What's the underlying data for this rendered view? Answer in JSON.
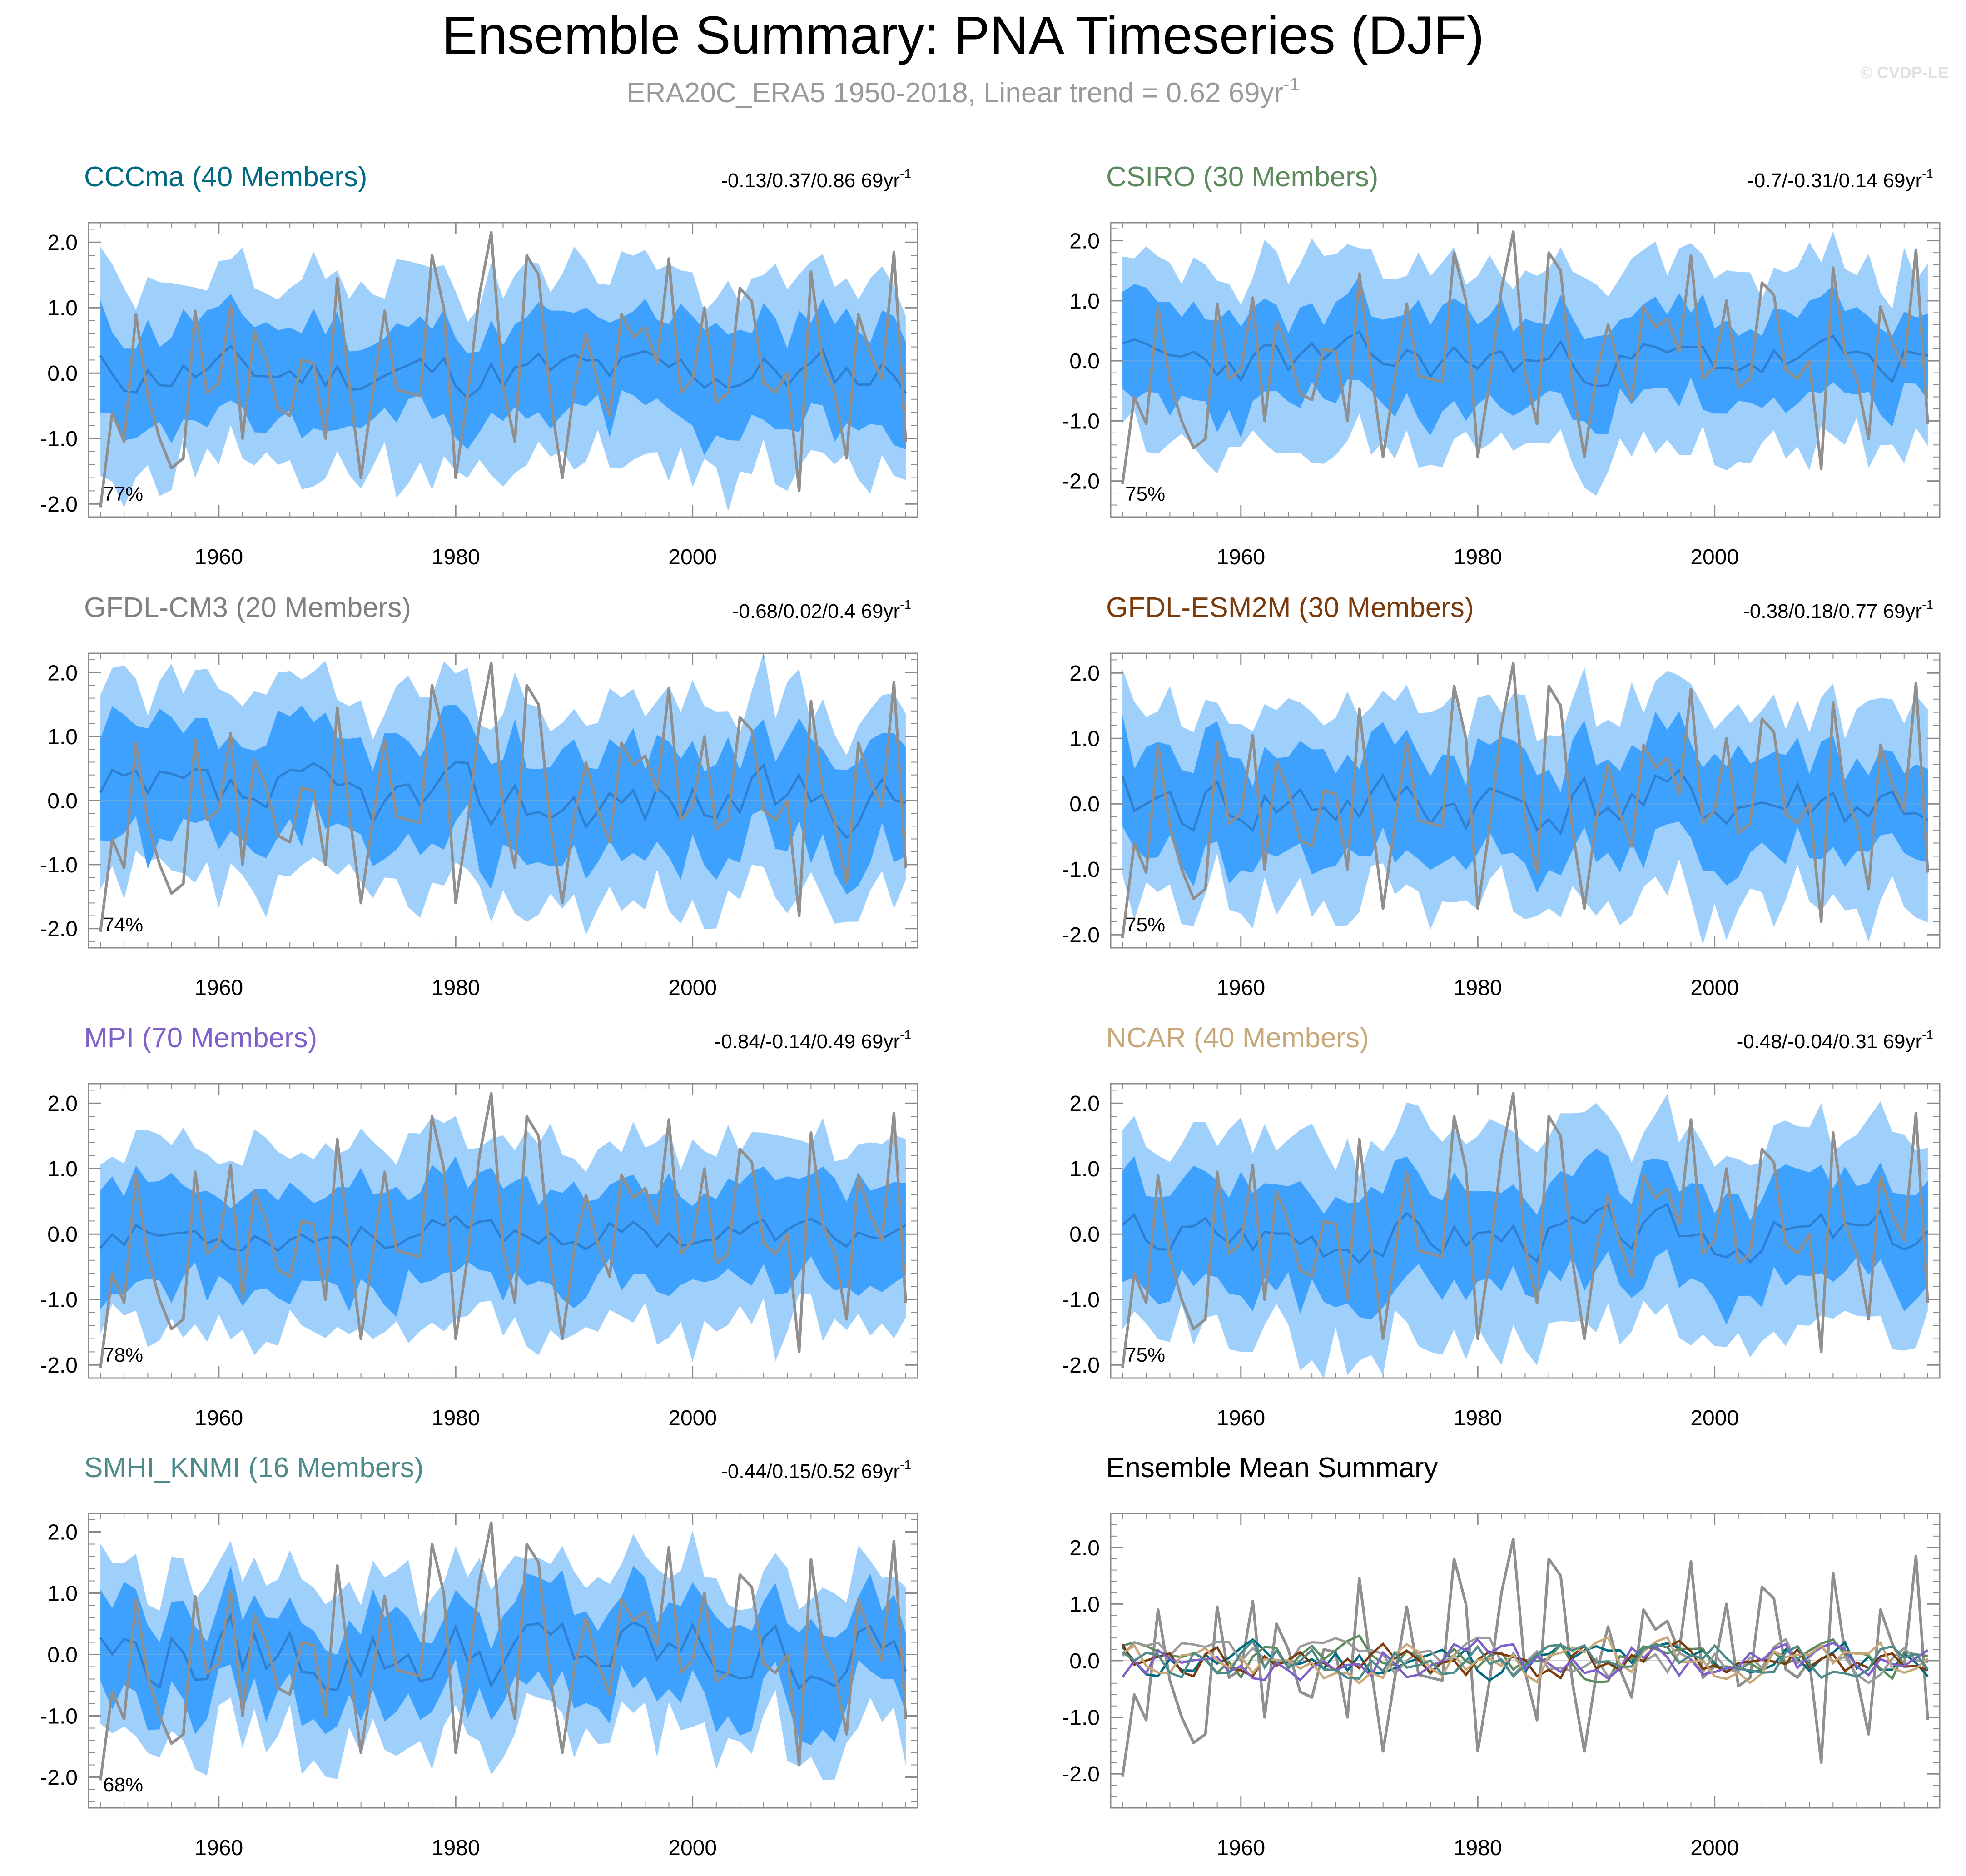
{
  "header": {
    "title": "Ensemble Summary: PNA Timeseries (DJF)",
    "subtitle_prefix": "ERA20C_ERA5 1950-2018, Linear trend = 0.62 69yr",
    "subtitle_sup": "-1",
    "watermark": "© CVDP-LE"
  },
  "colors": {
    "band_outer": "#9fcffb",
    "band_inner": "#3ea1fd",
    "ens_mean": "#2f7fd0",
    "observed": "#8f8f8f",
    "frame": "#8a8a8a"
  },
  "chart_data": [
    {
      "type": "line",
      "panel_id": "cccma",
      "title": "CCCma (40 Members)",
      "title_color": "#006a80",
      "trend_label": "-0.13/0.37/0.86 69yr",
      "trend_sup": "-1",
      "percent_label": "77%",
      "x_range": [
        1949,
        2019
      ],
      "ylim": [
        -2.2,
        2.3
      ],
      "yticks": [
        "2.0",
        "1.0",
        "0.0",
        "-1.0",
        "-2.0"
      ],
      "ytick_values": [
        2,
        1,
        0,
        -1,
        -2
      ],
      "xticks": [
        "1960",
        "1980",
        "2000"
      ],
      "xtick_values": [
        1960,
        1980,
        2000
      ],
      "seed": 11,
      "mean_amp": 0.15,
      "inner_width": 0.75,
      "outer_width": 1.45,
      "series": [
        "observed",
        "ensemble mean",
        "inner percentile band",
        "outer percentile band"
      ]
    },
    {
      "type": "line",
      "panel_id": "csiro",
      "title": "CSIRO (30 Members)",
      "title_color": "#5d8a5d",
      "trend_label": "-0.7/-0.31/0.14 69yr",
      "trend_sup": "-1",
      "percent_label": "75%",
      "x_range": [
        1949,
        2019
      ],
      "ylim": [
        -2.6,
        2.3
      ],
      "yticks": [
        "2.0",
        "1.0",
        "0.0",
        "-1.0",
        "-2.0"
      ],
      "ytick_values": [
        2,
        1,
        0,
        -1,
        -2
      ],
      "xticks": [
        "1960",
        "1980",
        "2000"
      ],
      "xtick_values": [
        1960,
        1980,
        2000
      ],
      "seed": 23,
      "mean_amp": 0.15,
      "inner_width": 0.75,
      "outer_width": 1.5,
      "series": [
        "observed",
        "ensemble mean",
        "inner percentile band",
        "outer percentile band"
      ]
    },
    {
      "type": "line",
      "panel_id": "gfdl_cm3",
      "title": "GFDL-CM3 (20 Members)",
      "title_color": "#808080",
      "trend_label": "-0.68/0.02/0.4 69yr",
      "trend_sup": "-1",
      "percent_label": "74%",
      "x_range": [
        1949,
        2019
      ],
      "ylim": [
        -2.3,
        2.3
      ],
      "yticks": [
        "2.0",
        "1.0",
        "0.0",
        "-1.0",
        "-2.0"
      ],
      "ytick_values": [
        2,
        1,
        0,
        -1,
        -2
      ],
      "xticks": [
        "1960",
        "1980",
        "2000"
      ],
      "xtick_values": [
        1960,
        1980,
        2000
      ],
      "seed": 37,
      "mean_amp": 0.2,
      "inner_width": 0.85,
      "outer_width": 1.5,
      "series": [
        "observed",
        "ensemble mean",
        "inner percentile band",
        "outer percentile band"
      ]
    },
    {
      "type": "line",
      "panel_id": "gfdl_esm2m",
      "title": "GFDL-ESM2M (30 Members)",
      "title_color": "#7a3a0c",
      "trend_label": "-0.38/0.18/0.77 69yr",
      "trend_sup": "-1",
      "percent_label": "75%",
      "x_range": [
        1949,
        2019
      ],
      "ylim": [
        -2.2,
        2.3
      ],
      "yticks": [
        "2.0",
        "1.0",
        "0.0",
        "-1.0",
        "-2.0"
      ],
      "ytick_values": [
        2,
        1,
        0,
        -1,
        -2
      ],
      "xticks": [
        "1960",
        "1980",
        "2000"
      ],
      "xtick_values": [
        1960,
        1980,
        2000
      ],
      "seed": 41,
      "mean_amp": 0.2,
      "inner_width": 0.8,
      "outer_width": 1.5,
      "series": [
        "observed",
        "ensemble mean",
        "inner percentile band",
        "outer percentile band"
      ]
    },
    {
      "type": "line",
      "panel_id": "mpi",
      "title": "MPI (70 Members)",
      "title_color": "#7f5fc8",
      "trend_label": "-0.84/-0.14/0.49 69yr",
      "trend_sup": "-1",
      "percent_label": "78%",
      "x_range": [
        1949,
        2019
      ],
      "ylim": [
        -2.2,
        2.3
      ],
      "yticks": [
        "2.0",
        "1.0",
        "0.0",
        "-1.0",
        "-2.0"
      ],
      "ytick_values": [
        2,
        1,
        0,
        -1,
        -2
      ],
      "xticks": [
        "1960",
        "1980",
        "2000"
      ],
      "xtick_values": [
        1960,
        1980,
        2000
      ],
      "seed": 53,
      "mean_amp": 0.1,
      "inner_width": 0.75,
      "outer_width": 1.4,
      "series": [
        "observed",
        "ensemble mean",
        "inner percentile band",
        "outer percentile band"
      ]
    },
    {
      "type": "line",
      "panel_id": "ncar",
      "title": "NCAR (40 Members)",
      "title_color": "#c8a878",
      "trend_label": "-0.48/-0.04/0.31 69yr",
      "trend_sup": "-1",
      "percent_label": "75%",
      "x_range": [
        1949,
        2019
      ],
      "ylim": [
        -2.2,
        2.3
      ],
      "yticks": [
        "2.0",
        "1.0",
        "0.0",
        "-1.0",
        "-2.0"
      ],
      "ytick_values": [
        2,
        1,
        0,
        -1,
        -2
      ],
      "xticks": [
        "1960",
        "1980",
        "2000"
      ],
      "xtick_values": [
        1960,
        1980,
        2000
      ],
      "seed": 67,
      "mean_amp": 0.15,
      "inner_width": 0.8,
      "outer_width": 1.5,
      "series": [
        "observed",
        "ensemble mean",
        "inner percentile band",
        "outer percentile band"
      ]
    },
    {
      "type": "line",
      "panel_id": "smhi_knmi",
      "title": "SMHI_KNMI (16 Members)",
      "title_color": "#4f8a8a",
      "trend_label": "-0.44/0.15/0.52 69yr",
      "trend_sup": "-1",
      "percent_label": "68%",
      "x_range": [
        1949,
        2019
      ],
      "ylim": [
        -2.5,
        2.3
      ],
      "yticks": [
        "2.0",
        "1.0",
        "0.0",
        "-1.0",
        "-2.0"
      ],
      "ytick_values": [
        2,
        1,
        0,
        -1,
        -2
      ],
      "xticks": [
        "1960",
        "1980",
        "2000"
      ],
      "xtick_values": [
        1960,
        1980,
        2000
      ],
      "seed": 79,
      "mean_amp": 0.25,
      "inner_width": 0.75,
      "outer_width": 1.3,
      "series": [
        "observed",
        "ensemble mean",
        "inner percentile band",
        "outer percentile band"
      ]
    },
    {
      "type": "line",
      "panel_id": "ensemble_mean_summary",
      "title": "Ensemble Mean Summary",
      "title_color": "#000000",
      "trend_label": "",
      "trend_sup": "",
      "percent_label": "",
      "x_range": [
        1949,
        2019
      ],
      "ylim": [
        -2.6,
        2.6
      ],
      "yticks": [
        "2.0",
        "1.0",
        "0.0",
        "-1.0",
        "-2.0"
      ],
      "ytick_values": [
        2,
        1,
        0,
        -1,
        -2
      ],
      "xticks": [
        "1960",
        "1980",
        "2000"
      ],
      "xtick_values": [
        1960,
        1980,
        2000
      ],
      "summary_series": [
        {
          "name": "CCCma",
          "color": "#006a80",
          "seed": 11
        },
        {
          "name": "CSIRO",
          "color": "#5d8a5d",
          "seed": 23
        },
        {
          "name": "GFDL-CM3",
          "color": "#9a9a9a",
          "seed": 37
        },
        {
          "name": "GFDL-ESM2M",
          "color": "#7a3a0c",
          "seed": 41
        },
        {
          "name": "MPI",
          "color": "#7f5fc8",
          "seed": 53
        },
        {
          "name": "NCAR",
          "color": "#c8a878",
          "seed": 67
        },
        {
          "name": "SMHI_KNMI",
          "color": "#4f8a8a",
          "seed": 79
        }
      ],
      "series": [
        "observed",
        "CCCma",
        "CSIRO",
        "GFDL-CM3",
        "GFDL-ESM2M",
        "MPI",
        "NCAR",
        "SMHI_KNMI"
      ]
    }
  ],
  "observed": {
    "name": "ERA20C_ERA5",
    "years": [
      1950,
      1951,
      1952,
      1953,
      1954,
      1955,
      1956,
      1957,
      1958,
      1959,
      1960,
      1961,
      1962,
      1963,
      1964,
      1965,
      1966,
      1967,
      1968,
      1969,
      1970,
      1971,
      1972,
      1973,
      1974,
      1975,
      1976,
      1977,
      1978,
      1979,
      1980,
      1981,
      1982,
      1983,
      1984,
      1985,
      1986,
      1987,
      1988,
      1989,
      1990,
      1991,
      1992,
      1993,
      1994,
      1995,
      1996,
      1997,
      1998,
      1999,
      2000,
      2001,
      2002,
      2003,
      2004,
      2005,
      2006,
      2007,
      2008,
      2009,
      2010,
      2011,
      2012,
      2013,
      2014,
      2015,
      2016,
      2017,
      2018
    ],
    "values": [
      -2.05,
      -0.6,
      -1.05,
      0.9,
      -0.35,
      -1.0,
      -1.45,
      -1.3,
      0.95,
      -0.3,
      -0.15,
      1.05,
      -1.0,
      0.65,
      0.2,
      -0.55,
      -0.65,
      0.2,
      0.15,
      -1.0,
      1.45,
      -0.15,
      -1.6,
      -0.3,
      0.95,
      -0.25,
      -0.3,
      -0.35,
      1.8,
      1.0,
      -1.6,
      -0.35,
      1.2,
      2.15,
      -0.2,
      -1.05,
      1.8,
      1.5,
      -0.4,
      -1.6,
      -0.25,
      0.6,
      -0.15,
      -0.65,
      0.9,
      0.55,
      0.7,
      0.15,
      1.75,
      -0.3,
      -0.1,
      1.0,
      -0.45,
      -0.3,
      1.3,
      1.1,
      -0.15,
      -0.3,
      0.0,
      -1.8,
      1.55,
      0.15,
      -0.3,
      -1.3,
      0.9,
      0.3,
      -0.1,
      1.85,
      -1.05
    ]
  }
}
